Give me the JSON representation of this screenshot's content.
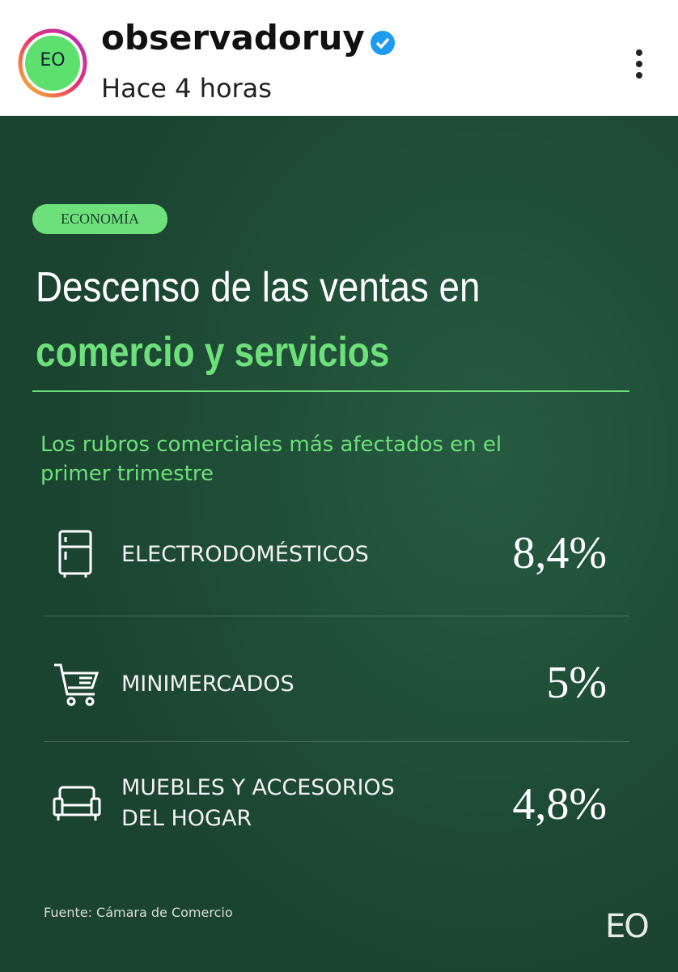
{
  "header": {
    "avatar": "EO",
    "username": "observadoruy",
    "time": "Hace 4 horas"
  },
  "post": {
    "tag": "ECONOMÍA",
    "title": [
      "Descenso de las ventas en",
      "comercio y servicios"
    ],
    "subtitle": [
      "Los rubros comerciales más afectados en el",
      "primer trimestre"
    ],
    "items": [
      {
        "label": [
          "ELECTRODOMÉSTICOS"
        ],
        "value": "8,4%"
      },
      {
        "label": [
          "MINIMERCADOS"
        ],
        "value": "5%"
      },
      {
        "label": [
          "MUEBLES Y ACCESORIOS",
          "DEL HOGAR"
        ],
        "value": "4,8%"
      }
    ],
    "source": "Fuente: Cámara de Comercio",
    "logo": "EO"
  }
}
